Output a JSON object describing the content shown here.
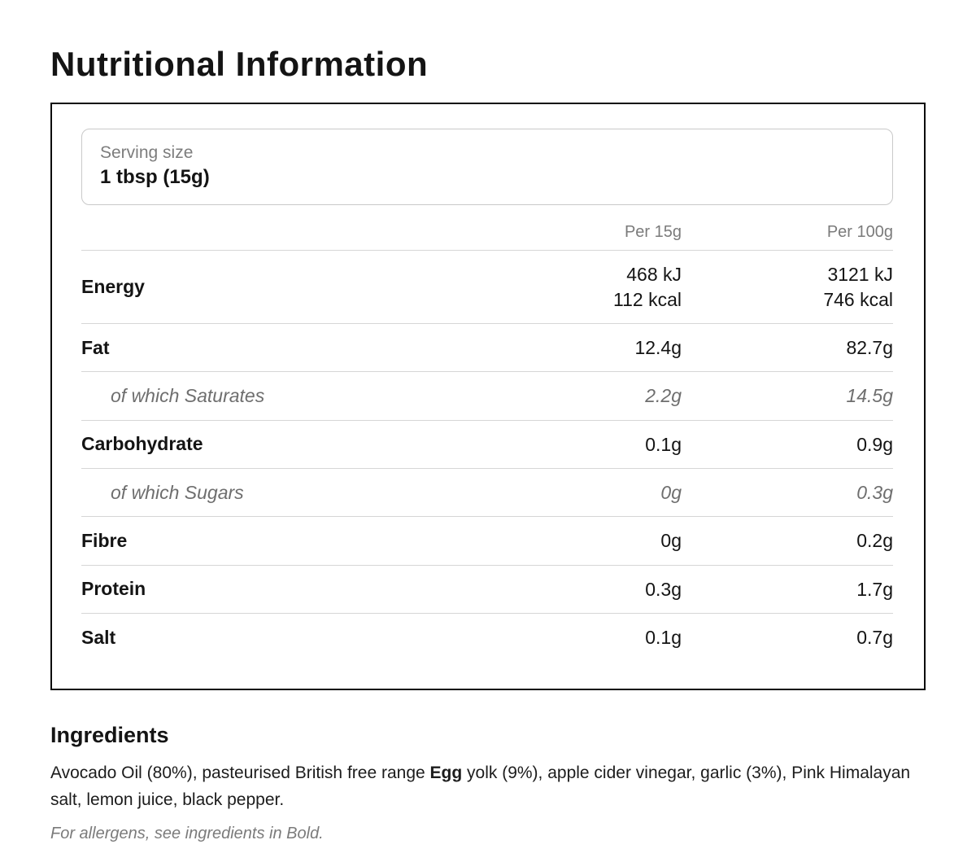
{
  "page": {
    "title": "Nutritional Information"
  },
  "serving": {
    "label": "Serving size",
    "value": "1 tbsp (15g)"
  },
  "table": {
    "columns": [
      "Per 15g",
      "Per 100g"
    ],
    "rows": [
      {
        "label": "Energy",
        "type": "main",
        "per_15g": "468 kJ\n112 kcal",
        "per_100g": "3121 kJ\n746 kcal"
      },
      {
        "label": "Fat",
        "type": "main",
        "per_15g": "12.4g",
        "per_100g": "82.7g"
      },
      {
        "label": "of which Saturates",
        "type": "sub",
        "per_15g": "2.2g",
        "per_100g": "14.5g"
      },
      {
        "label": "Carbohydrate",
        "type": "main",
        "per_15g": "0.1g",
        "per_100g": "0.9g"
      },
      {
        "label": "of which Sugars",
        "type": "sub",
        "per_15g": "0g",
        "per_100g": "0.3g"
      },
      {
        "label": "Fibre",
        "type": "main",
        "per_15g": "0g",
        "per_100g": "0.2g"
      },
      {
        "label": "Protein",
        "type": "main",
        "per_15g": "0.3g",
        "per_100g": "1.7g"
      },
      {
        "label": "Salt",
        "type": "main",
        "per_15g": "0.1g",
        "per_100g": "0.7g"
      }
    ]
  },
  "ingredients": {
    "heading": "Ingredients",
    "segments": [
      {
        "text": "Avocado Oil (80%), pasteurised British free range ",
        "bold": false
      },
      {
        "text": "Egg",
        "bold": true
      },
      {
        "text": " yolk (9%), apple cider vinegar, garlic (3%), Pink Himalayan salt, lemon juice, black pepper.",
        "bold": false
      }
    ],
    "note": "For allergens, see ingredients in Bold."
  },
  "colors": {
    "panel_border": "#0a0a0a",
    "divider": "#d6d6d6",
    "muted_text": "#7b7b7b",
    "text": "#141414"
  }
}
